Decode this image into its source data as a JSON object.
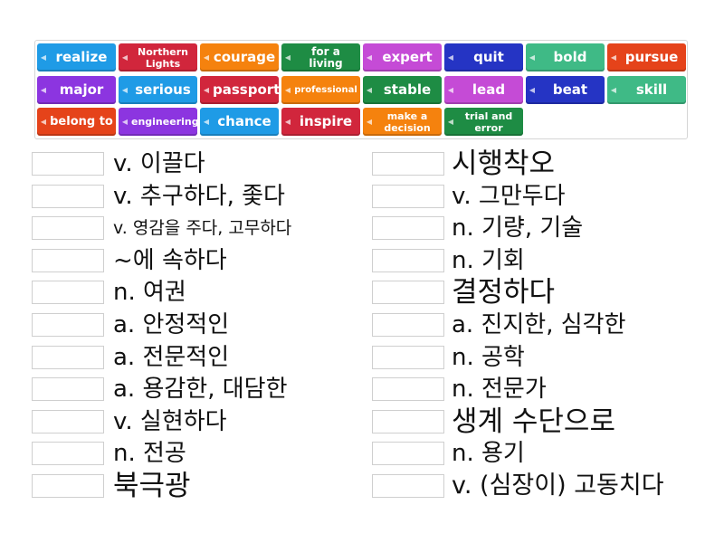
{
  "tiles": [
    {
      "label": "realize",
      "color": "#1f9be6",
      "size": 15
    },
    {
      "label": "Northern Lights",
      "color": "#d1263c",
      "size": 11
    },
    {
      "label": "courage",
      "color": "#f5820e",
      "size": 15
    },
    {
      "label": "for a living",
      "color": "#1e8c44",
      "size": 12
    },
    {
      "label": "expert",
      "color": "#c54bd6",
      "size": 15
    },
    {
      "label": "quit",
      "color": "#2534c4",
      "size": 15
    },
    {
      "label": "bold",
      "color": "#3fba86",
      "size": 15
    },
    {
      "label": "pursue",
      "color": "#e5431a",
      "size": 15
    },
    {
      "label": "major",
      "color": "#8c35e0",
      "size": 15
    },
    {
      "label": "serious",
      "color": "#1f9be6",
      "size": 15
    },
    {
      "label": "passport",
      "color": "#d1263c",
      "size": 15
    },
    {
      "label": "professional",
      "color": "#f5820e",
      "size": 10
    },
    {
      "label": "stable",
      "color": "#1e8c44",
      "size": 15
    },
    {
      "label": "lead",
      "color": "#c54bd6",
      "size": 15
    },
    {
      "label": "beat",
      "color": "#2534c4",
      "size": 15
    },
    {
      "label": "skill",
      "color": "#3fba86",
      "size": 15
    },
    {
      "label": "belong to",
      "color": "#e5431a",
      "size": 13
    },
    {
      "label": "engineering",
      "color": "#8c35e0",
      "size": 11
    },
    {
      "label": "chance",
      "color": "#1f9be6",
      "size": 15
    },
    {
      "label": "inspire",
      "color": "#d1263c",
      "size": 15
    },
    {
      "label": "make a decision",
      "color": "#f5820e",
      "size": 11
    },
    {
      "label": "trial and error",
      "color": "#1e8c44",
      "size": 11
    }
  ],
  "speaker_icon": "speaker-icon",
  "left_clues": [
    {
      "text": "v. 이끌다",
      "size": 26
    },
    {
      "text": "v. 추구하다, 좇다",
      "size": 26
    },
    {
      "text": "v. 영감을 주다, 고무하다",
      "size": 19
    },
    {
      "text": "~에 속하다",
      "size": 26
    },
    {
      "text": "n. 여권",
      "size": 26
    },
    {
      "text": "a. 안정적인",
      "size": 26
    },
    {
      "text": "a. 전문적인",
      "size": 26
    },
    {
      "text": "a. 용감한, 대담한",
      "size": 26
    },
    {
      "text": "v. 실현하다",
      "size": 26
    },
    {
      "text": "n. 전공",
      "size": 26
    },
    {
      "text": "북극광",
      "size": 31
    }
  ],
  "right_clues": [
    {
      "text": "시행착오",
      "size": 31
    },
    {
      "text": "v. 그만두다",
      "size": 26
    },
    {
      "text": "n. 기량, 기술",
      "size": 26
    },
    {
      "text": "n. 기회",
      "size": 26
    },
    {
      "text": "결정하다",
      "size": 31
    },
    {
      "text": "a. 진지한, 심각한",
      "size": 26
    },
    {
      "text": "n. 공학",
      "size": 26
    },
    {
      "text": "n. 전문가",
      "size": 26
    },
    {
      "text": "생계 수단으로",
      "size": 31
    },
    {
      "text": "n. 용기",
      "size": 26
    },
    {
      "text": "v. (심장이) 고동치다",
      "size": 27
    }
  ]
}
